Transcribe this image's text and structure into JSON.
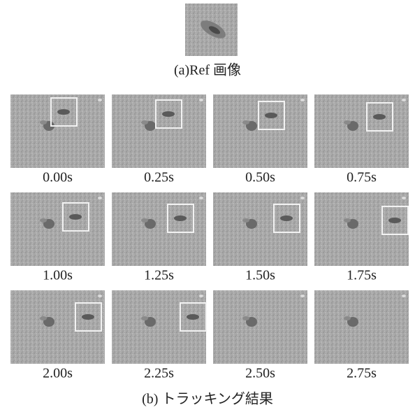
{
  "figure": {
    "reference": {
      "caption": "(a)Ref 画像"
    },
    "frames": [
      {
        "label": "0.00s"
      },
      {
        "label": "0.25s"
      },
      {
        "label": "0.50s"
      },
      {
        "label": "0.75s"
      },
      {
        "label": "1.00s"
      },
      {
        "label": "1.25s"
      },
      {
        "label": "1.50s"
      },
      {
        "label": "1.75s"
      },
      {
        "label": "2.00s"
      },
      {
        "label": "2.25s"
      },
      {
        "label": "2.50s"
      },
      {
        "label": "2.75s"
      }
    ],
    "caption": "(b) トラッキング結果"
  }
}
